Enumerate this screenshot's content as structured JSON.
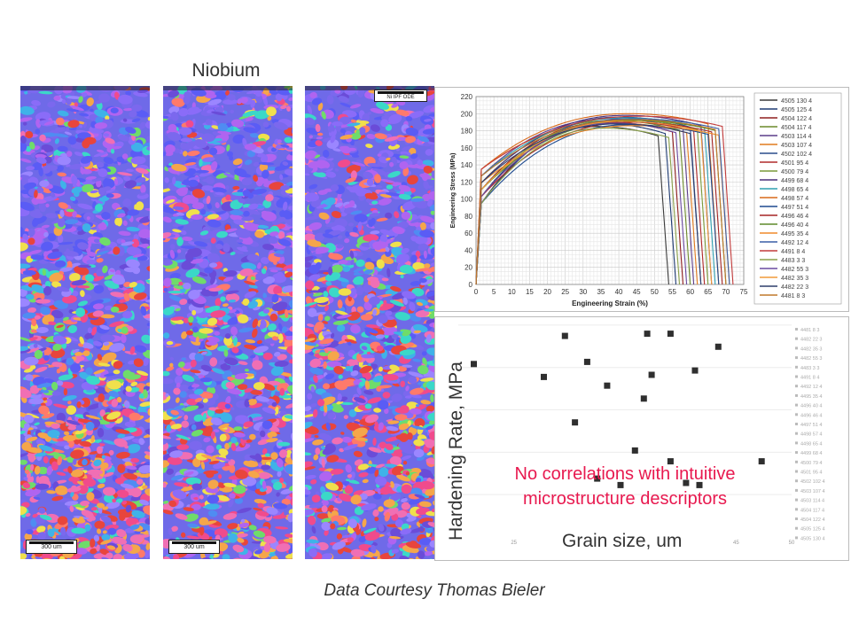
{
  "slide": {
    "title": "Niobium",
    "credit": "Data Courtesy Thomas Bieler"
  },
  "ebsd_panels": [
    {
      "scale_label": "300 um",
      "has_scale": true,
      "has_legend": false
    },
    {
      "scale_label": "300 um",
      "has_scale": true,
      "has_legend": false
    },
    {
      "scale_label": "",
      "has_scale": false,
      "has_legend": true,
      "legend_label": "Ni IPF ODE"
    }
  ],
  "ebsd_palette": [
    "#7b68ee",
    "#5a5cf5",
    "#8a6cf8",
    "#b064f0",
    "#4f8cf2",
    "#3fb2e8",
    "#f04b8c",
    "#f06fb4",
    "#e8453c",
    "#f5a64a",
    "#f0e04c",
    "#6fdc6a",
    "#3bd8c8",
    "#9b86ff",
    "#6a4cd8",
    "#ff7a6a"
  ],
  "overlay": {
    "ylabel": "Hardening Rate, MPa",
    "xlabel": "Grain size, um",
    "note_line1": "No correlations with intuitive",
    "note_line2": "microstructure descriptors"
  },
  "chart_data": [
    {
      "type": "line",
      "xlabel": "Engineering Strain (%)",
      "ylabel": "Engineering Stress (MPa)",
      "xlim": [
        0,
        75
      ],
      "ylim": [
        0,
        220
      ],
      "xticks": [
        0,
        5,
        10,
        15,
        20,
        25,
        30,
        35,
        40,
        45,
        50,
        55,
        60,
        65,
        70,
        75
      ],
      "yticks": [
        0,
        20,
        40,
        60,
        80,
        100,
        120,
        140,
        160,
        180,
        200,
        220
      ],
      "grid": true,
      "legend_position": "right",
      "series": [
        {
          "name": "4505 130 4",
          "color": "#3a3a3a",
          "peak": 185,
          "ultimate_strain": 34,
          "failure_strain": 54
        },
        {
          "name": "4505 125 4",
          "color": "#1f3b73",
          "peak": 188,
          "ultimate_strain": 36,
          "failure_strain": 56
        },
        {
          "name": "4504 122 4",
          "color": "#8f1e1e",
          "peak": 190,
          "ultimate_strain": 37,
          "failure_strain": 58
        },
        {
          "name": "4504 117 4",
          "color": "#6c8a2a",
          "peak": 192,
          "ultimate_strain": 38,
          "failure_strain": 60
        },
        {
          "name": "4503 114 4",
          "color": "#5c3d8a",
          "peak": 194,
          "ultimate_strain": 38,
          "failure_strain": 61
        },
        {
          "name": "4503 107 4",
          "color": "#e07b1f",
          "peak": 189,
          "ultimate_strain": 39,
          "failure_strain": 62
        },
        {
          "name": "4502 102 4",
          "color": "#2a4d8c",
          "peak": 196,
          "ultimate_strain": 40,
          "failure_strain": 63
        },
        {
          "name": "4501 95 4",
          "color": "#b02a2a",
          "peak": 191,
          "ultimate_strain": 40,
          "failure_strain": 64
        },
        {
          "name": "4500 79 4",
          "color": "#7a9a3a",
          "peak": 193,
          "ultimate_strain": 41,
          "failure_strain": 65
        },
        {
          "name": "4499 68 4",
          "color": "#4a2f7a",
          "peak": 198,
          "ultimate_strain": 42,
          "failure_strain": 66
        },
        {
          "name": "4498 65 4",
          "color": "#2fa0b0",
          "peak": 195,
          "ultimate_strain": 42,
          "failure_strain": 67
        },
        {
          "name": "4498 57 4",
          "color": "#d96a1a",
          "peak": 200,
          "ultimate_strain": 43,
          "failure_strain": 68
        },
        {
          "name": "4497 51 4",
          "color": "#1e4a8f",
          "peak": 187,
          "ultimate_strain": 43,
          "failure_strain": 68
        },
        {
          "name": "4496 46 4",
          "color": "#a52525",
          "peak": 190,
          "ultimate_strain": 44,
          "failure_strain": 69
        },
        {
          "name": "4496 40 4",
          "color": "#5f8a2a",
          "peak": 192,
          "ultimate_strain": 44,
          "failure_strain": 70
        },
        {
          "name": "4495 35 4",
          "color": "#ef8a2a",
          "peak": 186,
          "ultimate_strain": 45,
          "failure_strain": 71
        },
        {
          "name": "4492 12 4",
          "color": "#3a5fa5",
          "peak": 194,
          "ultimate_strain": 45,
          "failure_strain": 71
        },
        {
          "name": "4491 8 4",
          "color": "#c23b3b",
          "peak": 197,
          "ultimate_strain": 46,
          "failure_strain": 72
        },
        {
          "name": "4483 3 3",
          "color": "#8aa04a",
          "peak": 183,
          "ultimate_strain": 36,
          "failure_strain": 57
        },
        {
          "name": "4482 55 3",
          "color": "#6a4aa0",
          "peak": 189,
          "ultimate_strain": 39,
          "failure_strain": 59
        },
        {
          "name": "4482 35 3",
          "color": "#f09a3a",
          "peak": 191,
          "ultimate_strain": 41,
          "failure_strain": 66
        },
        {
          "name": "4482 22 3",
          "color": "#2d3e6b",
          "peak": 188,
          "ultimate_strain": 40,
          "failure_strain": 63
        },
        {
          "name": "4481 8 3",
          "color": "#c0782a",
          "peak": 193,
          "ultimate_strain": 44,
          "failure_strain": 70
        }
      ]
    },
    {
      "type": "scatter",
      "xlabel": "",
      "ylabel": "",
      "xlim": [
        20,
        50
      ],
      "xticks": [
        25,
        45,
        50
      ],
      "ylim": [
        0,
        100
      ],
      "legend_position": "right",
      "legend": [
        "4481 8 3",
        "4482 22 3",
        "4482 35 3",
        "4482 55 3",
        "4483 3 3",
        "4491 8 4",
        "4492 12 4",
        "4495 35 4",
        "4496 40 4",
        "4496 46 4",
        "4497 51 4",
        "4498 57 4",
        "4498 65 4",
        "4499 68 4",
        "4500 79 4",
        "4501 95 4",
        "4502 102 4",
        "4503 107 4",
        "4503 114 4",
        "4504 117 4",
        "4504 122 4",
        "4505 125 4",
        "4505 130 4"
      ],
      "points": [
        {
          "x": 21.4,
          "y": 80
        },
        {
          "x": 27.7,
          "y": 74
        },
        {
          "x": 29.6,
          "y": 93
        },
        {
          "x": 30.5,
          "y": 53
        },
        {
          "x": 31.6,
          "y": 81
        },
        {
          "x": 32.5,
          "y": 27
        },
        {
          "x": 33.4,
          "y": 70
        },
        {
          "x": 34.6,
          "y": 24
        },
        {
          "x": 35.9,
          "y": 40
        },
        {
          "x": 36.7,
          "y": 64
        },
        {
          "x": 37.0,
          "y": 94
        },
        {
          "x": 37.4,
          "y": 75
        },
        {
          "x": 39.1,
          "y": 94
        },
        {
          "x": 39.1,
          "y": 35
        },
        {
          "x": 40.5,
          "y": 25
        },
        {
          "x": 41.3,
          "y": 77
        },
        {
          "x": 41.7,
          "y": 24
        },
        {
          "x": 43.4,
          "y": 88
        },
        {
          "x": 47.3,
          "y": 35
        }
      ]
    }
  ]
}
